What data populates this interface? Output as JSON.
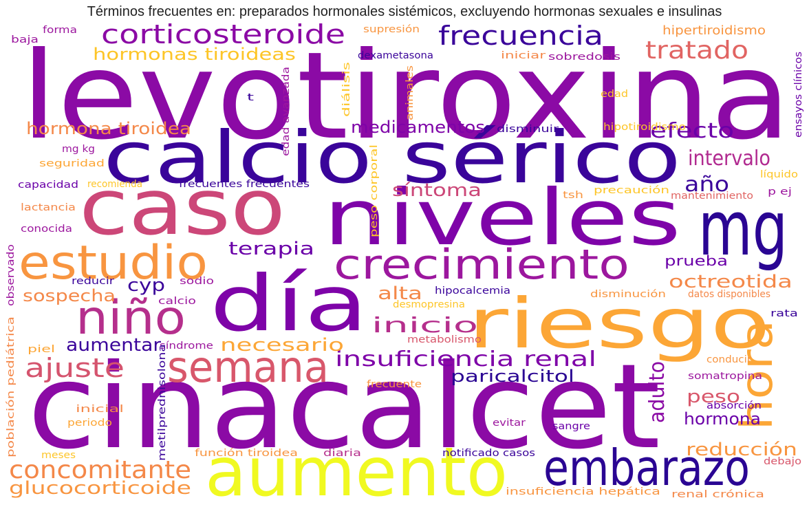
{
  "title": "Términos frecuentes en: preparados hormonales sistémicos, excluyendo hormonas sexuales e insulinas",
  "words": [
    {
      "text": "levotiroxina",
      "color": "#8b0aa5"
    },
    {
      "text": "cinacalcet",
      "color": "#8b0aa5"
    },
    {
      "text": "calcio sérico",
      "color": "#3a049a"
    },
    {
      "text": "niveles",
      "color": "#7e03a8"
    },
    {
      "text": "caso",
      "color": "#cc4778"
    },
    {
      "text": "día",
      "color": "#7e03a8"
    },
    {
      "text": "aumento",
      "color": "#f0f921"
    },
    {
      "text": "mg",
      "color": "#2a0593"
    },
    {
      "text": "riesgo",
      "color": "#fca636"
    },
    {
      "text": "estudio",
      "color": "#f89540"
    },
    {
      "text": "crecimiento",
      "color": "#9c179e"
    },
    {
      "text": "embarazo",
      "color": "#2a0593"
    },
    {
      "text": "semana",
      "color": "#d8576b"
    },
    {
      "text": "niño",
      "color": "#b52f8c"
    },
    {
      "text": "hora",
      "color": "#fca636"
    },
    {
      "text": "corticosteroide",
      "color": "#8b0aa5"
    },
    {
      "text": "frecuencia",
      "color": "#3a049a"
    },
    {
      "text": "tratado",
      "color": "#e16462"
    },
    {
      "text": "concomitante",
      "color": "#f48849"
    },
    {
      "text": "glucocorticoide",
      "color": "#f89540"
    },
    {
      "text": "insuficiencia renal",
      "color": "#7e03a8"
    },
    {
      "text": "ajuste",
      "color": "#d5546e"
    },
    {
      "text": "efecto",
      "color": "#6a00a8"
    },
    {
      "text": "intervalo",
      "color": "#b12a90"
    },
    {
      "text": "hormonas tiroideas",
      "color": "#fdc527"
    },
    {
      "text": "hormona tiroidea",
      "color": "#f48849"
    },
    {
      "text": "medicamentos",
      "color": "#7e03a8"
    },
    {
      "text": "inicio",
      "color": "#b52f8c"
    },
    {
      "text": "adulto",
      "color": "#8b0aa5"
    },
    {
      "text": "paricalcitol",
      "color": "#2a0593"
    },
    {
      "text": "necesario",
      "color": "#fca636"
    },
    {
      "text": "aumentar",
      "color": "#3a049a"
    },
    {
      "text": "terapia",
      "color": "#6a00a8"
    },
    {
      "text": "síntoma",
      "color": "#cc4778"
    },
    {
      "text": "año",
      "color": "#3a049a"
    },
    {
      "text": "octreotida",
      "color": "#f48849"
    },
    {
      "text": "reducción",
      "color": "#f89540"
    },
    {
      "text": "peso",
      "color": "#d8576b"
    },
    {
      "text": "hormona",
      "color": "#6a00a8"
    },
    {
      "text": "alta",
      "color": "#f48849"
    },
    {
      "text": "sospecha",
      "color": "#f48849"
    },
    {
      "text": "prueba",
      "color": "#6a00a8"
    },
    {
      "text": "cyp",
      "color": "#3a049a"
    },
    {
      "text": "hipertiroidismo",
      "color": "#f89540"
    },
    {
      "text": "dexametasona",
      "color": "#3a049a"
    },
    {
      "text": "sobredosis",
      "color": "#9c179e"
    },
    {
      "text": "iniciar",
      "color": "#f48849"
    },
    {
      "text": "supresión",
      "color": "#f89540"
    },
    {
      "text": "forma",
      "color": "#9c179e"
    },
    {
      "text": "baja",
      "color": "#9c179e"
    },
    {
      "text": "t",
      "color": "#3a049a"
    },
    {
      "text": "edad",
      "color": "#fdc527"
    },
    {
      "text": "hipotiroidismo",
      "color": "#fdc527"
    },
    {
      "text": "disminuir",
      "color": "#3a049a"
    },
    {
      "text": "ensayos clínicos",
      "color": "#6a00a8"
    },
    {
      "text": "diálisis",
      "color": "#fdc527"
    },
    {
      "text": "animales",
      "color": "#f89540"
    },
    {
      "text": "edad avanzada",
      "color": "#9c179e"
    },
    {
      "text": "peso corporal",
      "color": "#fdc527"
    },
    {
      "text": "mg kg",
      "color": "#9c179e"
    },
    {
      "text": "seguridad",
      "color": "#fca636"
    },
    {
      "text": "capacidad",
      "color": "#6a00a8"
    },
    {
      "text": "recomienda",
      "color": "#fdc527"
    },
    {
      "text": "frecuentes frecuentes",
      "color": "#3a049a"
    },
    {
      "text": "lactancia",
      "color": "#f48849"
    },
    {
      "text": "conocida",
      "color": "#9c179e"
    },
    {
      "text": "tsh",
      "color": "#f89540"
    },
    {
      "text": "precaución",
      "color": "#fdc527"
    },
    {
      "text": "mantenimiento",
      "color": "#e16462"
    },
    {
      "text": "líquido",
      "color": "#fdc527"
    },
    {
      "text": "p ej",
      "color": "#9c179e"
    },
    {
      "text": "reducir",
      "color": "#3a049a"
    },
    {
      "text": "sodio",
      "color": "#9c179e"
    },
    {
      "text": "calcio",
      "color": "#9c179e"
    },
    {
      "text": "hipocalcemia",
      "color": "#3a049a"
    },
    {
      "text": "desmopresina",
      "color": "#fdc527"
    },
    {
      "text": "disminución",
      "color": "#f89540"
    },
    {
      "text": "datos disponibles",
      "color": "#f48849"
    },
    {
      "text": "observado",
      "color": "#9c179e"
    },
    {
      "text": "población pediátrica",
      "color": "#f48849"
    },
    {
      "text": "piel",
      "color": "#fca636"
    },
    {
      "text": "síndrome",
      "color": "#9c179e"
    },
    {
      "text": "metabolismo",
      "color": "#d8576b"
    },
    {
      "text": "metilprednisolona",
      "color": "#3a049a"
    },
    {
      "text": "rata",
      "color": "#3a049a"
    },
    {
      "text": "conducir",
      "color": "#f89540"
    },
    {
      "text": "somatropina",
      "color": "#9c179e"
    },
    {
      "text": "absorción",
      "color": "#6a00a8"
    },
    {
      "text": "frecuente",
      "color": "#f89540"
    },
    {
      "text": "inicial",
      "color": "#f48849"
    },
    {
      "text": "periodo",
      "color": "#fca636"
    },
    {
      "text": "evitar",
      "color": "#9c179e"
    },
    {
      "text": "sangre",
      "color": "#6a00a8"
    },
    {
      "text": "meses",
      "color": "#fdc527"
    },
    {
      "text": "función tiroidea",
      "color": "#f89540"
    },
    {
      "text": "diaria",
      "color": "#b52f8c"
    },
    {
      "text": "notificado casos",
      "color": "#3a049a"
    },
    {
      "text": "debajo",
      "color": "#d8576b"
    },
    {
      "text": "insuficiencia hepática",
      "color": "#f89540"
    },
    {
      "text": "renal crónica",
      "color": "#f48849"
    }
  ]
}
